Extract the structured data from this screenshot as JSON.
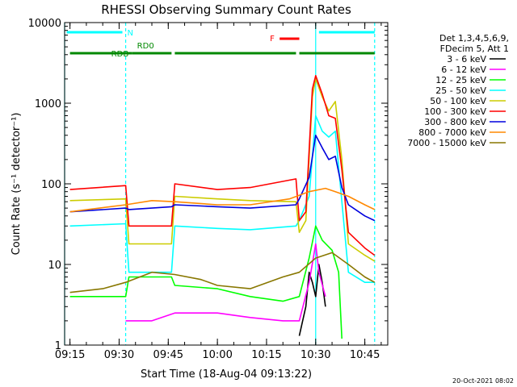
{
  "chart_data": {
    "type": "line",
    "title": "RHESSI Observing Summary Count Rates",
    "xlabel": "Start Time (18-Aug-04 09:13:22)",
    "ylabel": "Count Rate (s⁻¹ detector⁻¹)",
    "y_scale": "log",
    "xlim": [
      "09:13:22",
      "10:52:00"
    ],
    "ylim": [
      1,
      10000
    ],
    "x_tick_labels": [
      "09:15",
      "09:30",
      "09:45",
      "10:00",
      "10:15",
      "10:30",
      "10:45"
    ],
    "y_tick_labels": [
      "1",
      "10",
      "100",
      "1000",
      "10000"
    ],
    "legend_position": "right",
    "legend_header": [
      "Det 1,3,4,5,6,9,",
      "FDecim 5, Att 1"
    ],
    "footer": "20-Oct-2021 08:02",
    "series": [
      {
        "name": "3 - 6 keV",
        "color": "#000000",
        "points": [
          [
            "10:25",
            1.3
          ],
          [
            "10:27",
            3.0
          ],
          [
            "10:28",
            8.0
          ],
          [
            "10:29",
            6.0
          ],
          [
            "10:30",
            4.0
          ],
          [
            "10:31",
            10.0
          ],
          [
            "10:32",
            6.0
          ],
          [
            "10:33",
            3.0
          ]
        ]
      },
      {
        "name": "6 - 12 keV",
        "color": "#ff00ff",
        "points": [
          [
            "09:32",
            2.0
          ],
          [
            "09:40",
            2.0
          ],
          [
            "09:47",
            2.5
          ],
          [
            "10:00",
            2.5
          ],
          [
            "10:10",
            2.2
          ],
          [
            "10:20",
            2.0
          ],
          [
            "10:25",
            2.0
          ],
          [
            "10:28",
            6.0
          ],
          [
            "10:30",
            18.0
          ],
          [
            "10:31",
            8.0
          ],
          [
            "10:33",
            4.0
          ]
        ]
      },
      {
        "name": "12 - 25 keV",
        "color": "#00ff00",
        "points": [
          [
            "09:15",
            4.0
          ],
          [
            "09:32",
            4.0
          ],
          [
            "09:33",
            7.0
          ],
          [
            "09:46",
            7.0
          ],
          [
            "09:47",
            5.5
          ],
          [
            "10:00",
            5.0
          ],
          [
            "10:10",
            4.0
          ],
          [
            "10:20",
            3.5
          ],
          [
            "10:25",
            4.0
          ],
          [
            "10:28",
            12.0
          ],
          [
            "10:30",
            30.0
          ],
          [
            "10:32",
            20.0
          ],
          [
            "10:35",
            15.0
          ],
          [
            "10:37",
            8.0
          ],
          [
            "10:38",
            1.2
          ]
        ]
      },
      {
        "name": "25 - 50 keV",
        "color": "#00ffff",
        "points": [
          [
            "09:15",
            30.0
          ],
          [
            "09:32",
            32.0
          ],
          [
            "09:33",
            8.0
          ],
          [
            "09:46",
            8.0
          ],
          [
            "09:47",
            30.0
          ],
          [
            "10:00",
            28.0
          ],
          [
            "10:10",
            27.0
          ],
          [
            "10:24",
            30.0
          ],
          [
            "10:25",
            35.0
          ],
          [
            "10:28",
            70.0
          ],
          [
            "10:30",
            700.0
          ],
          [
            "10:32",
            450.0
          ],
          [
            "10:34",
            380.0
          ],
          [
            "10:36",
            450.0
          ],
          [
            "10:38",
            60.0
          ],
          [
            "10:40",
            8.0
          ],
          [
            "10:45",
            6.0
          ],
          [
            "10:48",
            6.0
          ]
        ]
      },
      {
        "name": "50 - 100 keV",
        "color": "#cccc00",
        "points": [
          [
            "09:15",
            62.0
          ],
          [
            "09:32",
            65.0
          ],
          [
            "09:33",
            18.0
          ],
          [
            "09:46",
            18.0
          ],
          [
            "09:47",
            70.0
          ],
          [
            "10:00",
            65.0
          ],
          [
            "10:10",
            62.0
          ],
          [
            "10:24",
            60.0
          ],
          [
            "10:25",
            25.0
          ],
          [
            "10:27",
            35.0
          ],
          [
            "10:29",
            1200.0
          ],
          [
            "10:30",
            2000.0
          ],
          [
            "10:32",
            1200.0
          ],
          [
            "10:34",
            800.0
          ],
          [
            "10:36",
            1050.0
          ],
          [
            "10:38",
            200.0
          ],
          [
            "10:40",
            18.0
          ],
          [
            "10:45",
            13.0
          ],
          [
            "10:48",
            11.0
          ]
        ]
      },
      {
        "name": "100 - 300 keV",
        "color": "#ff0000",
        "points": [
          [
            "09:15",
            85.0
          ],
          [
            "09:32",
            95.0
          ],
          [
            "09:33",
            30.0
          ],
          [
            "09:46",
            30.0
          ],
          [
            "09:47",
            100.0
          ],
          [
            "10:00",
            85.0
          ],
          [
            "10:10",
            90.0
          ],
          [
            "10:24",
            115.0
          ],
          [
            "10:25",
            35.0
          ],
          [
            "10:27",
            45.0
          ],
          [
            "10:29",
            1500.0
          ],
          [
            "10:30",
            2200.0
          ],
          [
            "10:32",
            1300.0
          ],
          [
            "10:34",
            700.0
          ],
          [
            "10:36",
            650.0
          ],
          [
            "10:38",
            150.0
          ],
          [
            "10:40",
            25.0
          ],
          [
            "10:45",
            16.0
          ],
          [
            "10:48",
            13.0
          ]
        ]
      },
      {
        "name": "300 - 800 keV",
        "color": "#0000dd",
        "points": [
          [
            "09:15",
            45.0
          ],
          [
            "09:32",
            50.0
          ],
          [
            "09:33",
            48.0
          ],
          [
            "09:46",
            52.0
          ],
          [
            "09:47",
            55.0
          ],
          [
            "10:00",
            52.0
          ],
          [
            "10:10",
            50.0
          ],
          [
            "10:24",
            55.0
          ],
          [
            "10:25",
            65.0
          ],
          [
            "10:28",
            120.0
          ],
          [
            "10:30",
            400.0
          ],
          [
            "10:32",
            280.0
          ],
          [
            "10:34",
            200.0
          ],
          [
            "10:36",
            220.0
          ],
          [
            "10:38",
            90.0
          ],
          [
            "10:40",
            55.0
          ],
          [
            "10:45",
            40.0
          ],
          [
            "10:48",
            35.0
          ]
        ]
      },
      {
        "name": "800 - 7000 keV",
        "color": "#ff8800",
        "points": [
          [
            "09:15",
            45.0
          ],
          [
            "09:32",
            55.0
          ],
          [
            "09:40",
            62.0
          ],
          [
            "09:47",
            60.0
          ],
          [
            "10:00",
            55.0
          ],
          [
            "10:10",
            55.0
          ],
          [
            "10:22",
            65.0
          ],
          [
            "10:28",
            80.0
          ],
          [
            "10:33",
            88.0
          ],
          [
            "10:36",
            80.0
          ],
          [
            "10:40",
            70.0
          ],
          [
            "10:45",
            55.0
          ],
          [
            "10:48",
            48.0
          ]
        ]
      },
      {
        "name": "7000 - 15000 keV",
        "color": "#887700",
        "points": [
          [
            "09:15",
            4.5
          ],
          [
            "09:25",
            5.0
          ],
          [
            "09:32",
            6.0
          ],
          [
            "09:40",
            8.0
          ],
          [
            "09:47",
            7.5
          ],
          [
            "09:55",
            6.5
          ],
          [
            "10:00",
            5.5
          ],
          [
            "10:10",
            5.0
          ],
          [
            "10:20",
            7.0
          ],
          [
            "10:25",
            8.0
          ],
          [
            "10:30",
            12.0
          ],
          [
            "10:35",
            14.0
          ],
          [
            "10:40",
            10.0
          ],
          [
            "10:45",
            7.0
          ],
          [
            "10:48",
            6.0
          ]
        ]
      }
    ],
    "state_bars": [
      {
        "label": "N",
        "color": "#00ffff",
        "spans": [
          [
            "09:14",
            "09:31"
          ],
          [
            "10:31",
            "10:48"
          ]
        ]
      },
      {
        "label": "F",
        "color": "#ff0000",
        "spans": [
          [
            "10:19",
            "10:25"
          ]
        ]
      },
      {
        "label": "RD0",
        "color": "#008800",
        "spans": [
          [
            "09:34",
            "09:46"
          ]
        ]
      },
      {
        "label": "RDB",
        "color": "#008800",
        "spans": [
          [
            "09:15",
            "09:34"
          ],
          [
            "09:47",
            "10:24"
          ],
          [
            "10:25",
            "10:48"
          ]
        ]
      }
    ],
    "vertical_markers": [
      {
        "time": "09:13:22",
        "color": "#00ffff",
        "style": "solid"
      },
      {
        "time": "09:32",
        "color": "#00ffff",
        "style": "dashed"
      },
      {
        "time": "10:30",
        "color": "#00ffff",
        "style": "solid"
      },
      {
        "time": "10:48",
        "color": "#00ffff",
        "style": "dashed"
      }
    ]
  }
}
